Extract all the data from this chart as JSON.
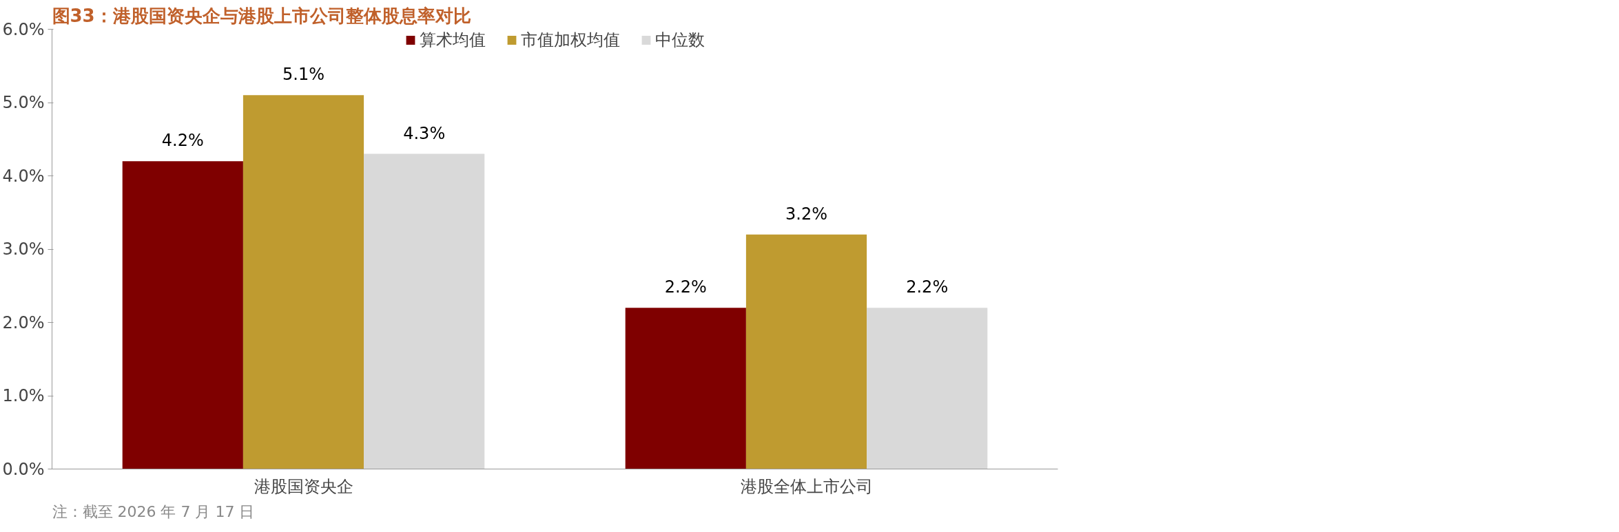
{
  "chart_data": {
    "type": "bar",
    "title": "图33：港股国资央企与港股上市公司整体股息率对比",
    "categories": [
      "港股国资央企",
      "港股全体上市公司"
    ],
    "series": [
      {
        "name": "算术均值",
        "color": "#7f0000",
        "values": [
          4.2,
          2.2
        ],
        "value_labels": [
          "4.2%",
          "2.2%"
        ]
      },
      {
        "name": "市值加权均值",
        "color": "#bf9b30",
        "values": [
          5.1,
          3.2
        ],
        "value_labels": [
          "5.1%",
          "3.2%"
        ]
      },
      {
        "name": "中位数",
        "color": "#d9d9d9",
        "values": [
          4.3,
          2.2
        ],
        "value_labels": [
          "4.3%",
          "2.2%"
        ]
      }
    ],
    "ylim": [
      0,
      6
    ],
    "yticks": [
      {
        "value": 0,
        "label": "0.0%"
      },
      {
        "value": 1,
        "label": "1.0%"
      },
      {
        "value": 2,
        "label": "2.0%"
      },
      {
        "value": 3,
        "label": "3.0%"
      },
      {
        "value": 4,
        "label": "4.0%"
      },
      {
        "value": 5,
        "label": "5.0%"
      },
      {
        "value": 6,
        "label": "6.0%"
      }
    ],
    "grid": false,
    "legend": "top",
    "annotations": [
      "注：截至 2026 年 7 月 17 日"
    ]
  }
}
